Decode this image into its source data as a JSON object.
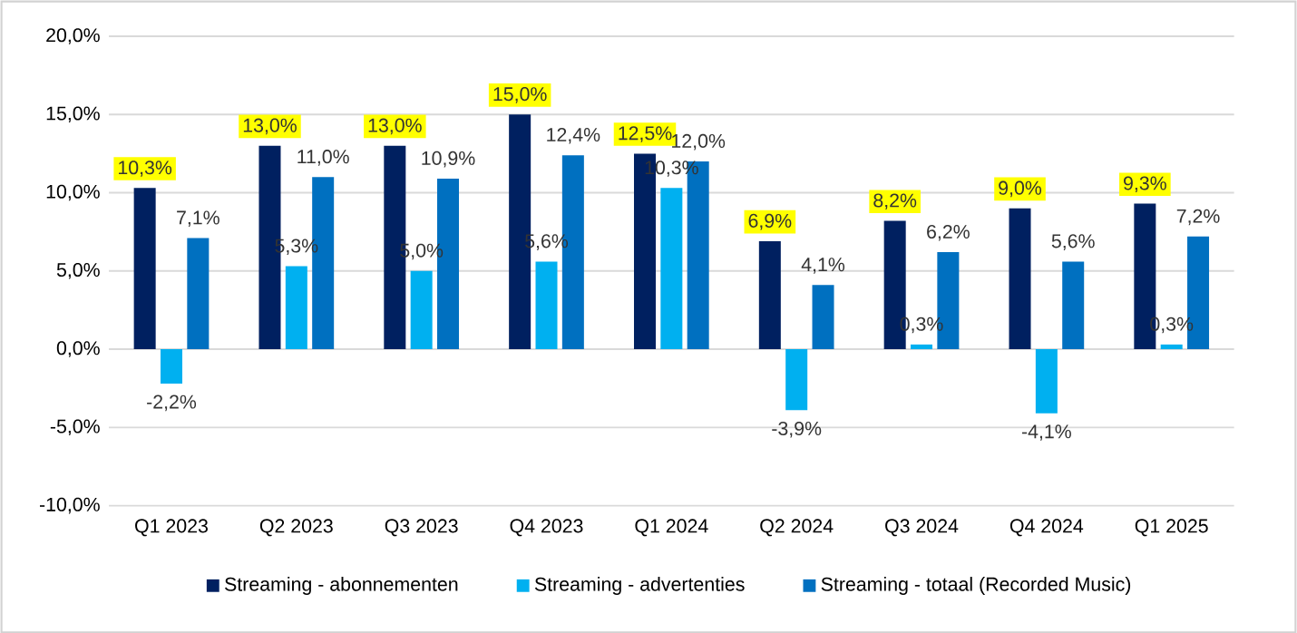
{
  "chart_data": {
    "type": "bar",
    "categories": [
      "Q1 2023",
      "Q2 2023",
      "Q3 2023",
      "Q4 2023",
      "Q1 2024",
      "Q2 2024",
      "Q3 2024",
      "Q4 2024",
      "Q1 2025"
    ],
    "series": [
      {
        "name": "Streaming - abonnementen",
        "color": "#002060",
        "values": [
          10.3,
          13.0,
          13.0,
          15.0,
          12.5,
          6.9,
          8.2,
          9.0,
          9.3
        ],
        "value_labels": [
          "10,3%",
          "13,0%",
          "13,0%",
          "15,0%",
          "12,5%",
          "6,9%",
          "8,2%",
          "9,0%",
          "9,3%"
        ]
      },
      {
        "name": "Streaming - advertenties",
        "color": "#00b0f0",
        "values": [
          -2.2,
          5.3,
          5.0,
          5.6,
          10.3,
          -3.9,
          0.3,
          -4.1,
          0.3
        ],
        "value_labels": [
          "-2,2%",
          "5,3%",
          "5,0%",
          "5,6%",
          "10,3%",
          "-3,9%",
          "0,3%",
          "-4,1%",
          "0,3%"
        ]
      },
      {
        "name": "Streaming - totaal (Recorded Music)",
        "color": "#0070c0",
        "values": [
          7.1,
          11.0,
          10.9,
          12.4,
          12.0,
          4.1,
          6.2,
          5.6,
          7.2
        ],
        "value_labels": [
          "7,1%",
          "11,0%",
          "10,9%",
          "12,4%",
          "12,0%",
          "4,1%",
          "6,2%",
          "5,6%",
          "7,2%"
        ]
      }
    ],
    "ylim": [
      -10,
      20
    ],
    "yticks": [
      {
        "value": -10,
        "label": "-10,0%"
      },
      {
        "value": -5,
        "label": "-5,0%"
      },
      {
        "value": 0,
        "label": "0,0%"
      },
      {
        "value": 5,
        "label": "5,0%"
      },
      {
        "value": 10,
        "label": "10,0%"
      },
      {
        "value": 15,
        "label": "15,0%"
      },
      {
        "value": 20,
        "label": "20,0%"
      }
    ],
    "grid": "y",
    "legend": "bottom"
  }
}
